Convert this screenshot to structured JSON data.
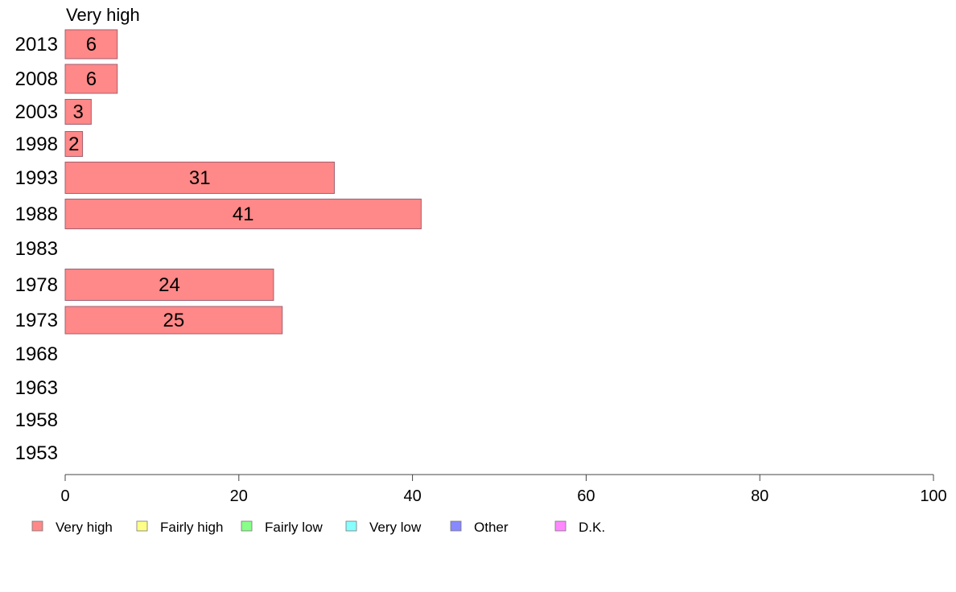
{
  "chart_data": {
    "type": "bar",
    "orientation": "horizontal",
    "panel_title": "Very high",
    "categories": [
      "2013",
      "2008",
      "2003",
      "1998",
      "1993",
      "1988",
      "1983",
      "1978",
      "1973",
      "1968",
      "1963",
      "1958",
      "1953"
    ],
    "series": [
      {
        "name": "Very high",
        "values": [
          6,
          6,
          3,
          2,
          31,
          41,
          null,
          24,
          25,
          null,
          null,
          null,
          null
        ],
        "color": "#ff8888"
      }
    ],
    "bar_labels": [
      "6",
      "6",
      "3",
      "2",
      "31",
      "41",
      "",
      "24",
      "25",
      "",
      "",
      "",
      ""
    ],
    "xlim": [
      0,
      100
    ],
    "xticks": [
      0,
      20,
      40,
      60,
      80,
      100
    ],
    "grid": false,
    "legend": {
      "placement": "bottom",
      "items": [
        {
          "label": "Very high",
          "color": "#ff8888"
        },
        {
          "label": "Fairly high",
          "color": "#ffff88"
        },
        {
          "label": "Fairly low",
          "color": "#88ff88"
        },
        {
          "label": "Very low",
          "color": "#88ffff"
        },
        {
          "label": "Other",
          "color": "#8888ff"
        },
        {
          "label": "D.K.",
          "color": "#ff88ff"
        }
      ]
    }
  }
}
